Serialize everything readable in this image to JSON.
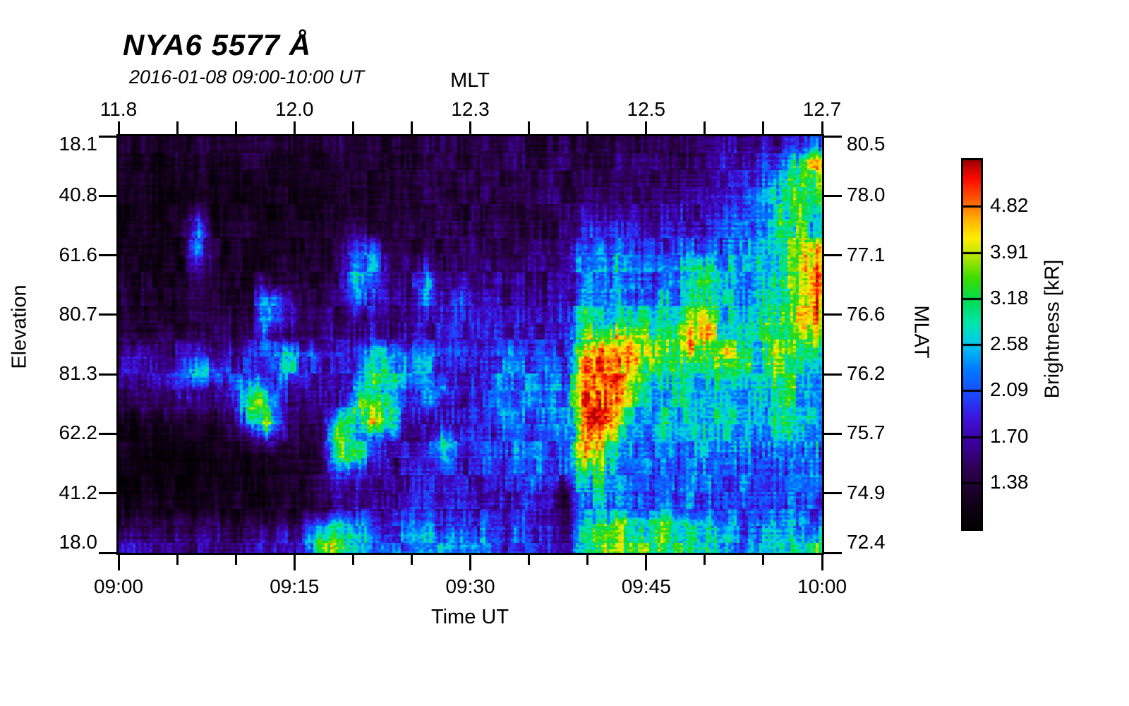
{
  "header": {
    "title": "NYA6 5577 Å",
    "subtitle": "2016-01-08 09:00-10:00 UT"
  },
  "axes": {
    "top": {
      "label": "MLT",
      "tick_labels": [
        "11.8",
        "12.0",
        "12.3",
        "12.5",
        "12.7"
      ]
    },
    "bottom": {
      "label": "Time UT",
      "tick_labels": [
        "09:00",
        "09:15",
        "09:30",
        "09:45",
        "10:00"
      ]
    },
    "left": {
      "label": "Elevation",
      "tick_labels": [
        "18.1",
        "40.8",
        "61.6",
        "80.7",
        "81.3",
        "62.2",
        "41.2",
        "18.0"
      ]
    },
    "right": {
      "label": "MLAT",
      "tick_labels": [
        "80.5",
        "78.0",
        "77.1",
        "76.6",
        "76.2",
        "75.7",
        "74.9",
        "72.4"
      ]
    }
  },
  "colorbar": {
    "label": "Brightness [kR]",
    "tick_labels_top_down": [
      "4.82",
      "3.91",
      "3.18",
      "2.58",
      "2.09",
      "1.70",
      "1.38"
    ]
  },
  "chart_data": {
    "type": "heatmap",
    "title": "NYA6 5577 Å",
    "subtitle": "2016-01-08 09:00-10:00 UT",
    "station": "NYA6",
    "wavelength_angstrom": 5577,
    "x_axis": {
      "label": "Time UT",
      "ticks": [
        "09:00",
        "09:15",
        "09:30",
        "09:45",
        "10:00"
      ],
      "minor_tick_interval_min": 5
    },
    "x2_axis": {
      "label": "MLT",
      "ticks": [
        11.8,
        12.0,
        12.3,
        12.5,
        12.7
      ],
      "note": "MLT values at the quarter-hour time ticks"
    },
    "y_axis": {
      "label": "Elevation",
      "ticks": [
        18.1,
        40.8,
        61.6,
        80.7,
        81.3,
        62.2,
        41.2,
        18.0
      ],
      "note": "meridian scan, zenith near middle"
    },
    "y2_axis": {
      "label": "MLAT",
      "ticks": [
        80.5,
        78.0,
        77.1,
        76.6,
        76.2,
        75.7,
        74.9,
        72.4
      ]
    },
    "colorbar": {
      "label": "Brightness [kR]",
      "tick_values": [
        1.38,
        1.7,
        2.09,
        2.58,
        3.18,
        3.91,
        4.82
      ],
      "scale": "log",
      "range_kR": [
        1.1,
        5.9
      ]
    },
    "grid_note": "24 rows (top=elevation 18.1 side, bottom=18.0 side) x 40 cols (left=09:00, right=10:00). Values 0-99 are indices into the rainbow colormap (0=black ~1.1 kR, 99=dark red ~5.9 kR).",
    "grid": [
      [
        11,
        11,
        11,
        11,
        11,
        11,
        11,
        11,
        11,
        11,
        11,
        11,
        12,
        12,
        12,
        12,
        12,
        12,
        12,
        12,
        12,
        13,
        13,
        13,
        13,
        13,
        14,
        14,
        14,
        15,
        15,
        15,
        16,
        16,
        20,
        22,
        24,
        26,
        28,
        32
      ],
      [
        9,
        9,
        9,
        9,
        9,
        9,
        8,
        8,
        8,
        8,
        8,
        8,
        10,
        10,
        10,
        10,
        12,
        12,
        12,
        12,
        12,
        14,
        14,
        14,
        14,
        14,
        16,
        16,
        16,
        17,
        17,
        17,
        18,
        18,
        24,
        26,
        28,
        36,
        55,
        80
      ],
      [
        7,
        7,
        7,
        7,
        7,
        7,
        7,
        7,
        7,
        7,
        7,
        7,
        9,
        9,
        9,
        9,
        12,
        12,
        12,
        12,
        12,
        14,
        14,
        14,
        14,
        14,
        17,
        17,
        17,
        18,
        18,
        18,
        20,
        20,
        26,
        30,
        34,
        48,
        65,
        72
      ],
      [
        6,
        6,
        6,
        6,
        6,
        6,
        6,
        6,
        6,
        6,
        6,
        6,
        8,
        8,
        8,
        8,
        12,
        12,
        12,
        12,
        12,
        15,
        15,
        15,
        15,
        15,
        18,
        18,
        18,
        19,
        19,
        19,
        22,
        22,
        30,
        34,
        38,
        52,
        68,
        64
      ],
      [
        6,
        6,
        6,
        6,
        20,
        6,
        7,
        7,
        7,
        7,
        7,
        7,
        9,
        9,
        9,
        9,
        13,
        13,
        13,
        13,
        13,
        15,
        15,
        15,
        15,
        15,
        22,
        22,
        22,
        22,
        22,
        22,
        26,
        26,
        34,
        38,
        42,
        54,
        66,
        58
      ],
      [
        7,
        7,
        7,
        7,
        42,
        8,
        8,
        8,
        8,
        8,
        8,
        8,
        10,
        20,
        10,
        10,
        14,
        14,
        14,
        14,
        14,
        16,
        16,
        16,
        16,
        16,
        30,
        30,
        30,
        25,
        25,
        25,
        30,
        30,
        38,
        42,
        45,
        52,
        62,
        55
      ],
      [
        8,
        8,
        8,
        8,
        46,
        9,
        9,
        9,
        9,
        9,
        9,
        9,
        12,
        38,
        40,
        14,
        15,
        15,
        15,
        15,
        15,
        17,
        17,
        17,
        17,
        17,
        40,
        40,
        40,
        30,
        30,
        30,
        35,
        35,
        40,
        44,
        46,
        50,
        60,
        85
      ],
      [
        9,
        9,
        9,
        9,
        26,
        10,
        10,
        10,
        10,
        10,
        10,
        10,
        13,
        48,
        44,
        16,
        16,
        30,
        17,
        17,
        17,
        19,
        19,
        19,
        19,
        19,
        46,
        46,
        46,
        38,
        38,
        38,
        50,
        55,
        44,
        46,
        48,
        52,
        62,
        92
      ],
      [
        10,
        10,
        10,
        10,
        12,
        10,
        11,
        11,
        22,
        11,
        11,
        11,
        14,
        40,
        36,
        18,
        18,
        42,
        20,
        22,
        20,
        21,
        21,
        21,
        21,
        21,
        48,
        48,
        48,
        42,
        42,
        42,
        60,
        62,
        46,
        48,
        50,
        58,
        74,
        92
      ],
      [
        11,
        11,
        11,
        11,
        14,
        11,
        12,
        12,
        52,
        30,
        13,
        13,
        15,
        32,
        30,
        20,
        20,
        36,
        24,
        38,
        22,
        23,
        23,
        23,
        23,
        23,
        50,
        50,
        50,
        46,
        46,
        46,
        58,
        56,
        48,
        50,
        52,
        60,
        70,
        84
      ],
      [
        12,
        12,
        12,
        12,
        12,
        12,
        13,
        13,
        56,
        34,
        14,
        15,
        18,
        18,
        18,
        18,
        22,
        28,
        24,
        28,
        24,
        26,
        26,
        26,
        26,
        26,
        52,
        52,
        52,
        50,
        50,
        50,
        72,
        74,
        50,
        52,
        54,
        62,
        76,
        86
      ],
      [
        14,
        14,
        18,
        14,
        14,
        14,
        16,
        16,
        36,
        16,
        16,
        16,
        22,
        22,
        22,
        22,
        26,
        26,
        26,
        26,
        26,
        30,
        30,
        30,
        30,
        30,
        60,
        68,
        72,
        70,
        60,
        62,
        86,
        80,
        54,
        56,
        58,
        60,
        66,
        74
      ],
      [
        20,
        28,
        20,
        20,
        30,
        20,
        24,
        28,
        30,
        48,
        42,
        26,
        26,
        26,
        55,
        50,
        45,
        40,
        35,
        32,
        32,
        36,
        36,
        36,
        36,
        36,
        85,
        92,
        88,
        76,
        66,
        60,
        78,
        64,
        80,
        56,
        58,
        66,
        60,
        58
      ],
      [
        24,
        26,
        28,
        30,
        48,
        42,
        36,
        30,
        26,
        50,
        36,
        26,
        28,
        28,
        60,
        55,
        48,
        40,
        30,
        30,
        30,
        38,
        38,
        38,
        38,
        38,
        90,
        94,
        86,
        68,
        58,
        54,
        58,
        58,
        58,
        54,
        56,
        68,
        58,
        52
      ],
      [
        20,
        20,
        20,
        28,
        20,
        20,
        30,
        58,
        40,
        30,
        24,
        22,
        24,
        50,
        55,
        50,
        28,
        45,
        38,
        30,
        30,
        40,
        40,
        40,
        40,
        40,
        88,
        90,
        80,
        58,
        54,
        52,
        54,
        54,
        52,
        52,
        54,
        58,
        56,
        50
      ],
      [
        16,
        16,
        16,
        16,
        16,
        16,
        26,
        72,
        58,
        22,
        20,
        20,
        26,
        62,
        70,
        55,
        28,
        40,
        28,
        30,
        32,
        42,
        42,
        42,
        42,
        42,
        90,
        92,
        78,
        52,
        52,
        52,
        52,
        52,
        50,
        50,
        52,
        55,
        52,
        48
      ],
      [
        8,
        8,
        8,
        8,
        8,
        8,
        14,
        48,
        75,
        20,
        18,
        18,
        58,
        55,
        82,
        55,
        26,
        28,
        30,
        28,
        30,
        40,
        40,
        40,
        40,
        40,
        88,
        86,
        70,
        50,
        50,
        50,
        48,
        48,
        48,
        48,
        50,
        52,
        50,
        46
      ],
      [
        6,
        6,
        6,
        6,
        6,
        6,
        10,
        22,
        32,
        16,
        15,
        16,
        66,
        52,
        38,
        28,
        24,
        24,
        55,
        32,
        30,
        38,
        38,
        38,
        38,
        38,
        86,
        80,
        60,
        46,
        46,
        46,
        45,
        45,
        45,
        45,
        46,
        48,
        46,
        43
      ],
      [
        4,
        4,
        4,
        4,
        4,
        4,
        8,
        9,
        9,
        12,
        12,
        16,
        70,
        62,
        30,
        26,
        26,
        26,
        45,
        30,
        28,
        36,
        36,
        36,
        36,
        36,
        78,
        66,
        54,
        43,
        43,
        43,
        42,
        42,
        42,
        42,
        43,
        45,
        43,
        40
      ],
      [
        4,
        4,
        4,
        4,
        4,
        4,
        6,
        6,
        7,
        8,
        9,
        18,
        35,
        28,
        24,
        24,
        26,
        26,
        26,
        26,
        26,
        34,
        34,
        34,
        34,
        34,
        56,
        58,
        48,
        40,
        40,
        40,
        39,
        39,
        38,
        38,
        40,
        42,
        40,
        38
      ],
      [
        5,
        5,
        5,
        5,
        5,
        5,
        6,
        6,
        6,
        6,
        6,
        15,
        22,
        22,
        22,
        22,
        26,
        26,
        26,
        26,
        26,
        30,
        30,
        30,
        26,
        14,
        48,
        52,
        45,
        38,
        38,
        38,
        37,
        37,
        36,
        36,
        37,
        40,
        38,
        36
      ],
      [
        10,
        7,
        7,
        7,
        7,
        7,
        7,
        7,
        7,
        7,
        7,
        15,
        24,
        24,
        24,
        24,
        28,
        28,
        28,
        28,
        28,
        30,
        30,
        28,
        24,
        11,
        44,
        48,
        44,
        40,
        40,
        40,
        36,
        36,
        34,
        35,
        36,
        38,
        36,
        34
      ],
      [
        16,
        16,
        16,
        16,
        16,
        16,
        14,
        14,
        16,
        18,
        20,
        48,
        60,
        45,
        32,
        30,
        36,
        36,
        36,
        36,
        36,
        34,
        32,
        30,
        26,
        13,
        58,
        70,
        66,
        60,
        60,
        60,
        58,
        50,
        40,
        40,
        42,
        44,
        42,
        46
      ],
      [
        26,
        22,
        22,
        22,
        22,
        22,
        20,
        22,
        24,
        26,
        30,
        66,
        70,
        55,
        45,
        36,
        44,
        44,
        50,
        44,
        44,
        36,
        34,
        30,
        26,
        16,
        62,
        70,
        64,
        62,
        62,
        62,
        58,
        52,
        42,
        44,
        46,
        50,
        52,
        56
      ]
    ],
    "colormap": [
      [
        0.0,
        "#000000"
      ],
      [
        0.08,
        "#16001f"
      ],
      [
        0.16,
        "#2e0050"
      ],
      [
        0.235,
        "#3c00a0"
      ],
      [
        0.3,
        "#3c14dc"
      ],
      [
        0.36,
        "#1e46ff"
      ],
      [
        0.43,
        "#0078ff"
      ],
      [
        0.5,
        "#00c8f0"
      ],
      [
        0.56,
        "#00e6aa"
      ],
      [
        0.62,
        "#00dc50"
      ],
      [
        0.68,
        "#3cdc00"
      ],
      [
        0.74,
        "#b4e600"
      ],
      [
        0.79,
        "#ffee00"
      ],
      [
        0.845,
        "#ffaa00"
      ],
      [
        0.9,
        "#ff5000"
      ],
      [
        0.95,
        "#ff0a00"
      ],
      [
        1.0,
        "#a00000"
      ]
    ]
  }
}
